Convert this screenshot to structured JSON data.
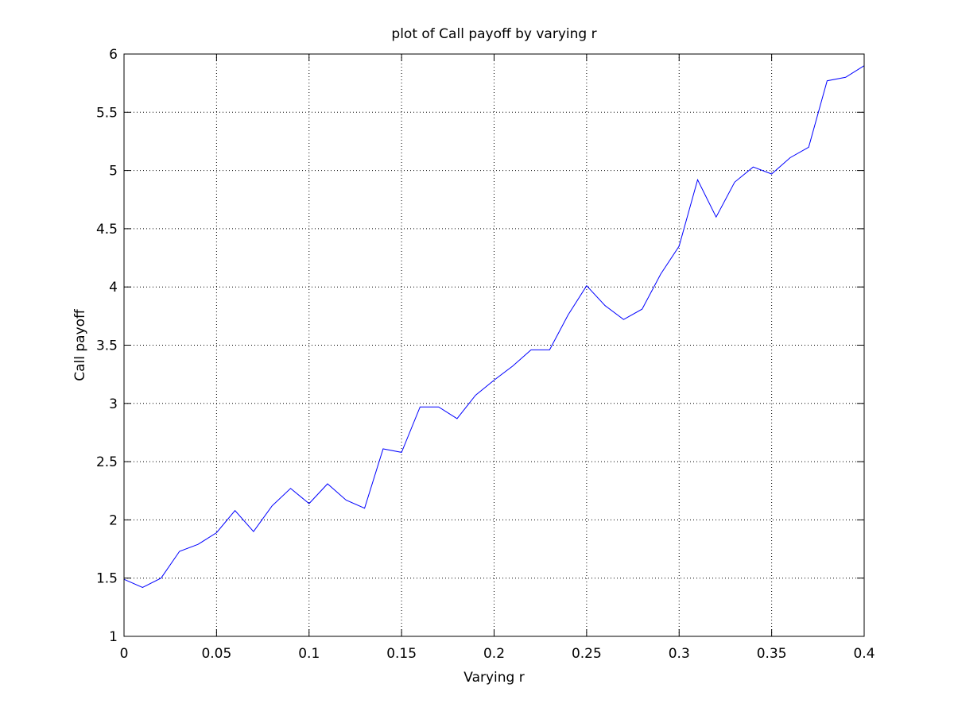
{
  "chart_data": {
    "type": "line",
    "title": "plot of Call payoff by varying r",
    "xlabel": "Varying r",
    "ylabel": "Call payoff",
    "xlim": [
      0,
      0.4
    ],
    "ylim": [
      1,
      6
    ],
    "xticks": [
      0,
      0.05,
      0.1,
      0.15,
      0.2,
      0.25,
      0.3,
      0.35,
      0.4
    ],
    "xtick_labels": [
      "0",
      "0.05",
      "0.1",
      "0.15",
      "0.2",
      "0.25",
      "0.3",
      "0.35",
      "0.4"
    ],
    "yticks": [
      1,
      1.5,
      2,
      2.5,
      3,
      3.5,
      4,
      4.5,
      5,
      5.5,
      6
    ],
    "ytick_labels": [
      "1",
      "1.5",
      "2",
      "2.5",
      "3",
      "3.5",
      "4",
      "4.5",
      "5",
      "5.5",
      "6"
    ],
    "grid": true,
    "grid_style": "dotted",
    "line_color": "#0000ff",
    "series": [
      {
        "x": [
          0,
          0.01,
          0.02,
          0.03,
          0.04,
          0.05,
          0.06,
          0.07,
          0.08,
          0.09,
          0.1,
          0.11,
          0.12,
          0.13,
          0.14,
          0.15,
          0.16,
          0.17,
          0.18,
          0.19,
          0.2,
          0.21,
          0.22,
          0.23,
          0.24,
          0.25,
          0.26,
          0.27,
          0.28,
          0.29,
          0.3,
          0.31,
          0.32,
          0.33,
          0.34,
          0.35,
          0.36,
          0.37,
          0.38,
          0.39,
          0.4
        ],
        "values": [
          1.49,
          1.42,
          1.5,
          1.73,
          1.79,
          1.89,
          2.08,
          1.9,
          2.12,
          2.27,
          2.14,
          2.31,
          2.17,
          2.1,
          2.61,
          2.58,
          2.97,
          2.97,
          2.87,
          3.07,
          3.2,
          3.32,
          3.46,
          3.46,
          3.76,
          4.01,
          3.84,
          3.72,
          3.81,
          4.11,
          4.35,
          4.92,
          4.6,
          4.9,
          5.03,
          4.97,
          5.11,
          5.2,
          5.77,
          5.8,
          5.9
        ]
      }
    ]
  }
}
